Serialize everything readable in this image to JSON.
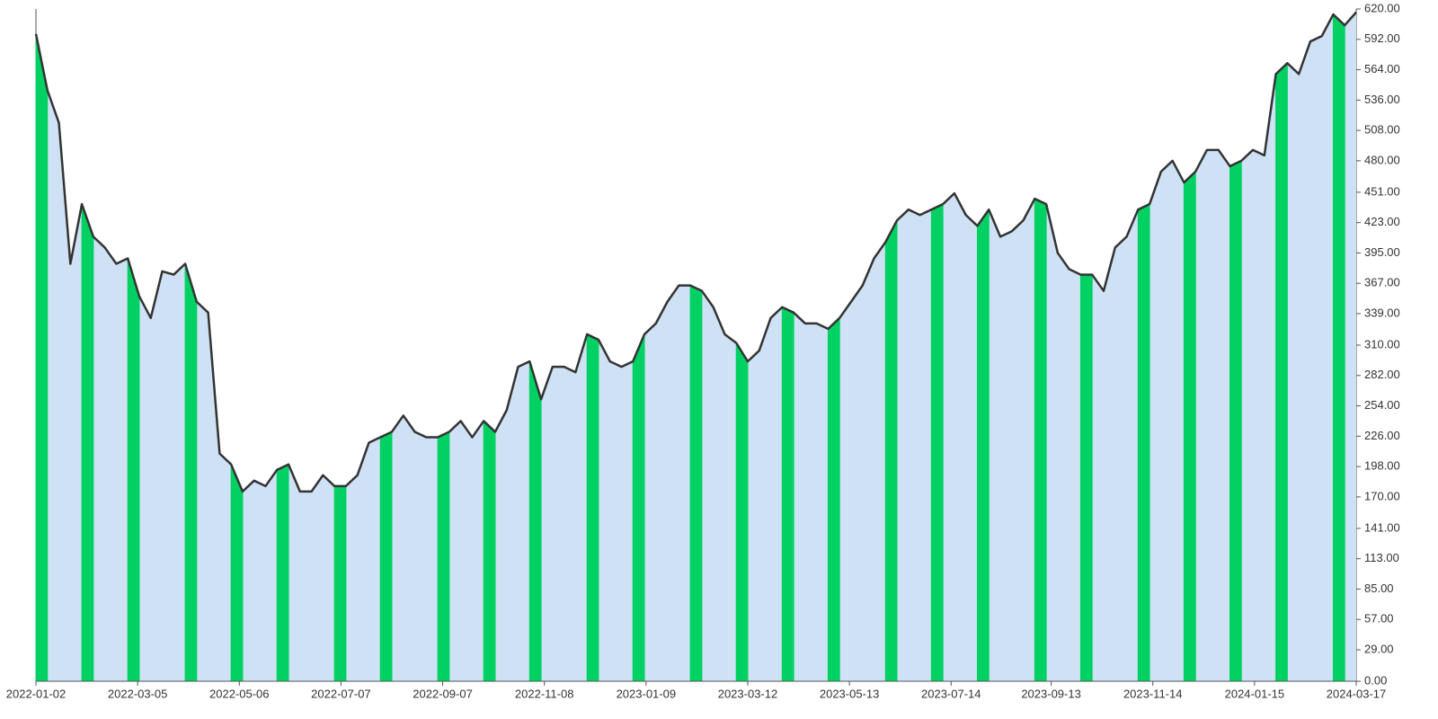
{
  "chart_data": {
    "type": "area",
    "x": [
      "2022-01-02",
      "2022-01-09",
      "2022-01-16",
      "2022-01-23",
      "2022-01-30",
      "2022-02-06",
      "2022-02-13",
      "2022-02-20",
      "2022-02-27",
      "2022-03-06",
      "2022-03-13",
      "2022-03-20",
      "2022-03-27",
      "2022-04-03",
      "2022-04-10",
      "2022-04-17",
      "2022-04-24",
      "2022-05-01",
      "2022-05-08",
      "2022-05-15",
      "2022-05-22",
      "2022-05-29",
      "2022-06-05",
      "2022-06-12",
      "2022-06-19",
      "2022-06-26",
      "2022-07-03",
      "2022-07-10",
      "2022-07-17",
      "2022-07-24",
      "2022-07-31",
      "2022-08-07",
      "2022-08-14",
      "2022-08-21",
      "2022-08-28",
      "2022-09-04",
      "2022-09-11",
      "2022-09-18",
      "2022-09-25",
      "2022-10-02",
      "2022-10-09",
      "2022-10-16",
      "2022-10-23",
      "2022-10-30",
      "2022-11-06",
      "2022-11-13",
      "2022-11-20",
      "2022-11-27",
      "2022-12-04",
      "2022-12-11",
      "2022-12-18",
      "2022-12-25",
      "2023-01-01",
      "2023-01-08",
      "2023-01-15",
      "2023-01-22",
      "2023-01-29",
      "2023-02-05",
      "2023-02-12",
      "2023-02-19",
      "2023-02-26",
      "2023-03-05",
      "2023-03-12",
      "2023-03-19",
      "2023-03-26",
      "2023-04-02",
      "2023-04-09",
      "2023-04-16",
      "2023-04-23",
      "2023-04-30",
      "2023-05-07",
      "2023-05-14",
      "2023-05-21",
      "2023-05-28",
      "2023-06-04",
      "2023-06-11",
      "2023-06-18",
      "2023-06-25",
      "2023-07-02",
      "2023-07-09",
      "2023-07-16",
      "2023-07-23",
      "2023-07-30",
      "2023-08-06",
      "2023-08-13",
      "2023-08-20",
      "2023-08-27",
      "2023-09-03",
      "2023-09-10",
      "2023-09-17",
      "2023-09-24",
      "2023-10-01",
      "2023-10-08",
      "2023-10-15",
      "2023-10-22",
      "2023-10-29",
      "2023-11-05",
      "2023-11-12",
      "2023-11-19",
      "2023-11-26",
      "2023-12-03",
      "2023-12-10",
      "2023-12-17",
      "2023-12-24",
      "2023-12-31",
      "2024-01-07",
      "2024-01-14",
      "2024-01-21",
      "2024-01-28",
      "2024-02-04",
      "2024-02-11",
      "2024-02-18",
      "2024-02-25",
      "2024-03-03",
      "2024-03-10",
      "2024-03-17"
    ],
    "series": [
      {
        "color": "#333333",
        "fill": "#cfe2f5",
        "values": [
          597,
          545,
          515,
          385,
          440,
          410,
          400,
          385,
          390,
          355,
          335,
          378,
          375,
          385,
          350,
          340,
          210,
          200,
          175,
          185,
          180,
          195,
          200,
          175,
          175,
          190,
          180,
          180,
          190,
          220,
          225,
          230,
          245,
          230,
          225,
          225,
          230,
          240,
          225,
          240,
          230,
          250,
          290,
          295,
          260,
          290,
          290,
          285,
          320,
          315,
          295,
          290,
          295,
          320,
          330,
          350,
          365,
          365,
          360,
          345,
          320,
          312,
          295,
          305,
          335,
          345,
          340,
          330,
          330,
          325,
          335,
          350,
          365,
          390,
          405,
          425,
          435,
          430,
          435,
          440,
          450,
          430,
          420,
          435,
          410,
          415,
          425,
          445,
          440,
          395,
          380,
          375,
          375,
          360,
          400,
          410,
          435,
          440,
          470,
          480,
          460,
          470,
          490,
          490,
          475,
          480,
          490,
          485,
          560,
          570,
          560,
          590,
          595,
          615,
          605,
          617
        ]
      },
      {
        "color": "#00d162",
        "fill": "#00d162",
        "values": [
          597,
          545,
          null,
          null,
          440,
          410,
          null,
          null,
          390,
          355,
          null,
          null,
          null,
          385,
          350,
          null,
          null,
          200,
          175,
          null,
          null,
          195,
          200,
          null,
          null,
          null,
          180,
          180,
          null,
          null,
          225,
          230,
          null,
          null,
          null,
          225,
          230,
          null,
          null,
          240,
          230,
          null,
          null,
          295,
          260,
          null,
          null,
          null,
          320,
          315,
          null,
          null,
          295,
          320,
          null,
          null,
          null,
          365,
          360,
          null,
          null,
          312,
          295,
          null,
          null,
          345,
          340,
          null,
          null,
          325,
          335,
          null,
          null,
          null,
          405,
          425,
          null,
          null,
          435,
          440,
          null,
          null,
          420,
          435,
          null,
          null,
          null,
          445,
          440,
          null,
          null,
          375,
          375,
          null,
          null,
          null,
          435,
          440,
          null,
          null,
          460,
          470,
          null,
          null,
          475,
          480,
          null,
          null,
          560,
          570,
          null,
          null,
          null,
          615,
          605,
          null
        ]
      }
    ],
    "xlim": [
      "2022-01-02",
      "2024-03-17"
    ],
    "xticks": [
      "2022-01-02",
      "2022-03-05",
      "2022-05-06",
      "2022-07-07",
      "2022-09-07",
      "2022-11-08",
      "2023-01-09",
      "2023-03-12",
      "2023-05-13",
      "2023-07-14",
      "2023-09-13",
      "2023-11-14",
      "2024-01-15",
      "2024-03-17"
    ],
    "ylim": [
      0,
      620
    ],
    "yticks": [
      {
        "value": 0,
        "label": "0.00"
      },
      {
        "value": 29,
        "label": "29.00"
      },
      {
        "value": 57,
        "label": "57.00"
      },
      {
        "value": 85,
        "label": "85.00"
      },
      {
        "value": 113,
        "label": "113.00"
      },
      {
        "value": 141,
        "label": "141.00"
      },
      {
        "value": 170,
        "label": "170.00"
      },
      {
        "value": 198,
        "label": "198.00"
      },
      {
        "value": 226,
        "label": "226.00"
      },
      {
        "value": 254,
        "label": "254.00"
      },
      {
        "value": 282,
        "label": "282.00"
      },
      {
        "value": 310,
        "label": "310.00"
      },
      {
        "value": 339,
        "label": "339.00"
      },
      {
        "value": 367,
        "label": "367.00"
      },
      {
        "value": 395,
        "label": "395.00"
      },
      {
        "value": 423,
        "label": "423.00"
      },
      {
        "value": 451,
        "label": "451.00"
      },
      {
        "value": 480,
        "label": "480.00"
      },
      {
        "value": 508,
        "label": "508.00"
      },
      {
        "value": 536,
        "label": "536.00"
      },
      {
        "value": 564,
        "label": "564.00"
      },
      {
        "value": 592,
        "label": "592.00"
      },
      {
        "value": 620,
        "label": "620.00"
      }
    ],
    "grid": false
  }
}
